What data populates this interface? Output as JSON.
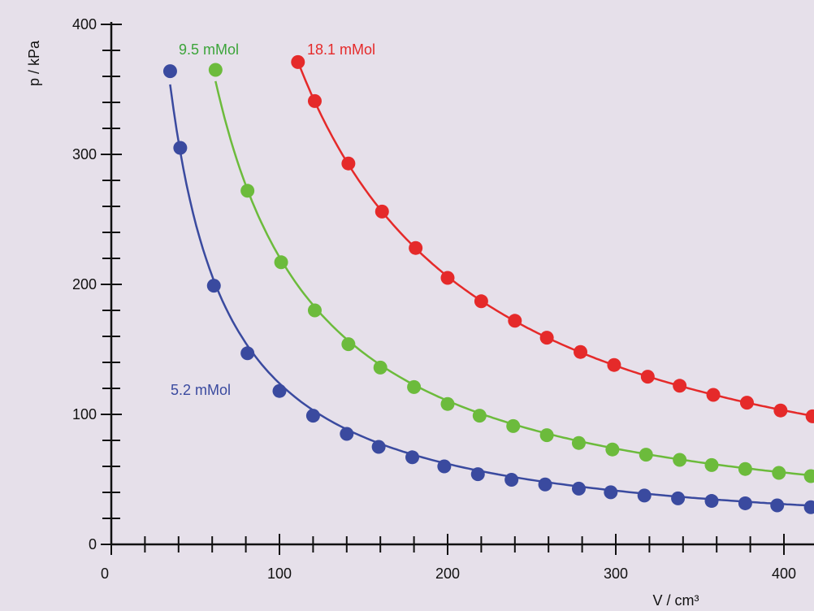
{
  "chart_data": {
    "type": "scatter",
    "xlabel": "V / cm³",
    "ylabel": "p / kPa",
    "xlim": [
      0,
      420
    ],
    "ylim": [
      0,
      400
    ],
    "x_ticks": [
      0,
      100,
      200,
      300,
      400
    ],
    "y_ticks": [
      0,
      100,
      200,
      300,
      400
    ],
    "grid": false,
    "series": [
      {
        "name": "5.2 mMol",
        "color": "#3a4a9f",
        "points": [
          [
            35,
            364
          ],
          [
            41,
            305
          ],
          [
            61,
            199
          ],
          [
            81,
            147
          ],
          [
            100,
            118
          ],
          [
            120,
            99
          ],
          [
            140,
            85
          ],
          [
            159,
            75
          ],
          [
            179,
            67
          ],
          [
            198,
            60
          ],
          [
            218,
            54
          ],
          [
            238,
            49.7
          ],
          [
            258,
            46.1
          ],
          [
            278,
            42.9
          ],
          [
            297,
            40.1
          ],
          [
            317,
            37.6
          ],
          [
            337,
            35.4
          ],
          [
            357,
            33.4
          ],
          [
            377,
            31.6
          ],
          [
            396,
            30.0
          ],
          [
            416,
            28.6
          ]
        ]
      },
      {
        "name": "9.5 mMol",
        "color": "#6cbb3c",
        "points": [
          [
            62,
            365
          ],
          [
            81,
            272
          ],
          [
            101,
            217
          ],
          [
            121,
            180
          ],
          [
            141,
            154
          ],
          [
            160,
            136
          ],
          [
            180,
            121
          ],
          [
            200,
            108
          ],
          [
            219,
            99
          ],
          [
            239,
            91
          ],
          [
            259,
            84
          ],
          [
            278,
            78
          ],
          [
            298,
            73
          ],
          [
            318,
            69
          ],
          [
            338,
            65
          ],
          [
            357,
            61
          ],
          [
            377,
            58
          ],
          [
            397,
            55
          ],
          [
            416,
            52.5
          ]
        ]
      },
      {
        "name": "18.1 mMol",
        "color": "#e52a2a",
        "points": [
          [
            111,
            371
          ],
          [
            121,
            341
          ],
          [
            141,
            293
          ],
          [
            161,
            256
          ],
          [
            181,
            228
          ],
          [
            200,
            205
          ],
          [
            220,
            187
          ],
          [
            240,
            172
          ],
          [
            259,
            159
          ],
          [
            279,
            148
          ],
          [
            299,
            138
          ],
          [
            319,
            129
          ],
          [
            338,
            122
          ],
          [
            358,
            115
          ],
          [
            378,
            109
          ],
          [
            398,
            103
          ],
          [
            417,
            98.5
          ]
        ]
      }
    ]
  }
}
